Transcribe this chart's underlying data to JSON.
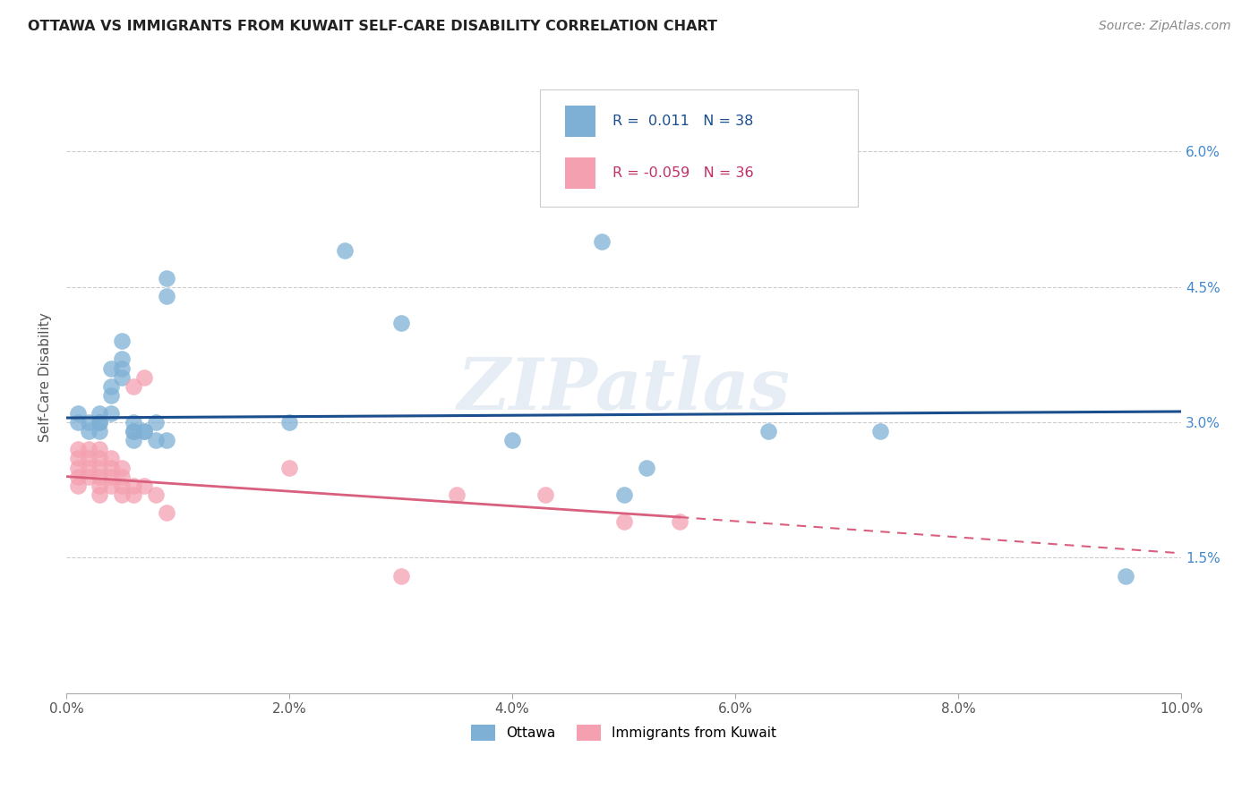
{
  "title": "OTTAWA VS IMMIGRANTS FROM KUWAIT SELF-CARE DISABILITY CORRELATION CHART",
  "source": "Source: ZipAtlas.com",
  "ylabel": "Self-Care Disability",
  "watermark": "ZIPatlas",
  "xlim": [
    0.0,
    0.1
  ],
  "ylim": [
    0.0,
    0.07
  ],
  "xtick_vals": [
    0.0,
    0.02,
    0.04,
    0.06,
    0.08,
    0.1
  ],
  "xtick_labels": [
    "0.0%",
    "2.0%",
    "4.0%",
    "6.0%",
    "8.0%",
    "10.0%"
  ],
  "ytick_vals": [
    0.0,
    0.015,
    0.03,
    0.045,
    0.06
  ],
  "ytick_labels_right": [
    "",
    "1.5%",
    "3.0%",
    "4.5%",
    "6.0%"
  ],
  "blue_color": "#7EB0D5",
  "pink_color": "#F4A0B0",
  "line_blue_color": "#1A4E8C",
  "line_pink_color": "#D95F7F",
  "legend_r1": "R =  0.011",
  "legend_n1": "N = 38",
  "legend_r2": "R = -0.059",
  "legend_n2": "N = 36",
  "blue_line_x0": 0.0,
  "blue_line_y0": 0.0305,
  "blue_line_x1": 0.1,
  "blue_line_y1": 0.0312,
  "pink_line_x0": 0.0,
  "pink_line_y0": 0.024,
  "pink_line_solid_x1": 0.055,
  "pink_line_solid_y1": 0.0195,
  "pink_line_dash_x1": 0.1,
  "pink_line_dash_y1": 0.0155,
  "ottawa_x": [
    0.001,
    0.001,
    0.002,
    0.002,
    0.003,
    0.003,
    0.003,
    0.003,
    0.004,
    0.004,
    0.004,
    0.004,
    0.005,
    0.005,
    0.005,
    0.005,
    0.006,
    0.006,
    0.006,
    0.006,
    0.007,
    0.007,
    0.008,
    0.008,
    0.009,
    0.009,
    0.009,
    0.02,
    0.025,
    0.03,
    0.04,
    0.048,
    0.05,
    0.052,
    0.063,
    0.068,
    0.073,
    0.095
  ],
  "ottawa_y": [
    0.03,
    0.031,
    0.029,
    0.03,
    0.029,
    0.03,
    0.03,
    0.031,
    0.031,
    0.033,
    0.034,
    0.036,
    0.035,
    0.036,
    0.037,
    0.039,
    0.028,
    0.029,
    0.029,
    0.03,
    0.029,
    0.029,
    0.028,
    0.03,
    0.028,
    0.044,
    0.046,
    0.03,
    0.049,
    0.041,
    0.028,
    0.05,
    0.022,
    0.025,
    0.029,
    0.057,
    0.029,
    0.013
  ],
  "kuwait_x": [
    0.001,
    0.001,
    0.001,
    0.001,
    0.001,
    0.002,
    0.002,
    0.002,
    0.002,
    0.003,
    0.003,
    0.003,
    0.003,
    0.003,
    0.003,
    0.004,
    0.004,
    0.004,
    0.004,
    0.005,
    0.005,
    0.005,
    0.005,
    0.006,
    0.006,
    0.006,
    0.007,
    0.007,
    0.008,
    0.009,
    0.02,
    0.035,
    0.043,
    0.05,
    0.055,
    0.03
  ],
  "kuwait_y": [
    0.027,
    0.026,
    0.025,
    0.024,
    0.023,
    0.027,
    0.026,
    0.025,
    0.024,
    0.027,
    0.026,
    0.025,
    0.024,
    0.023,
    0.022,
    0.026,
    0.025,
    0.024,
    0.023,
    0.025,
    0.024,
    0.023,
    0.022,
    0.034,
    0.023,
    0.022,
    0.035,
    0.023,
    0.022,
    0.02,
    0.025,
    0.022,
    0.022,
    0.019,
    0.019,
    0.013
  ]
}
